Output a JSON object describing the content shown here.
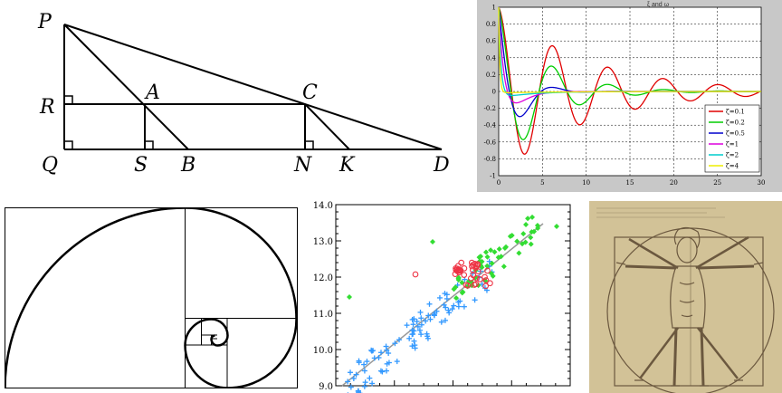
{
  "geometry": {
    "points": [
      "P",
      "R",
      "Q",
      "A",
      "S",
      "B",
      "C",
      "N",
      "K",
      "D"
    ]
  },
  "damping_plot": {
    "title": "ξ and ω",
    "legend": [
      "ζ=0.1",
      "ζ=0.2",
      "ζ=0.5",
      "ζ=1",
      "ζ=2",
      "ζ=4"
    ],
    "colors": [
      "#e00000",
      "#00cc00",
      "#0000cc",
      "#dd00dd",
      "#00cccc",
      "#eeee00"
    ],
    "zetas": [
      0.1,
      0.2,
      0.5,
      1,
      2,
      4
    ],
    "x_ticks": [
      "0",
      "5",
      "10",
      "15",
      "20",
      "25",
      "30"
    ],
    "y_ticks": [
      "1",
      "0.8",
      "0.6",
      "0.4",
      "0.2",
      "0",
      "-0.2",
      "-0.4",
      "-0.6",
      "-0.8",
      "-1"
    ]
  },
  "scatter_plot": {
    "y_ticks": [
      "14.0",
      "13.0",
      "12.0",
      "11.0",
      "10.0",
      "9.0"
    ],
    "colors": {
      "blue": "#3399ff",
      "green": "#33dd33",
      "red": "#ee3344"
    }
  },
  "vitruvian": {
    "alt": "Vitruvian Man sketch"
  }
}
